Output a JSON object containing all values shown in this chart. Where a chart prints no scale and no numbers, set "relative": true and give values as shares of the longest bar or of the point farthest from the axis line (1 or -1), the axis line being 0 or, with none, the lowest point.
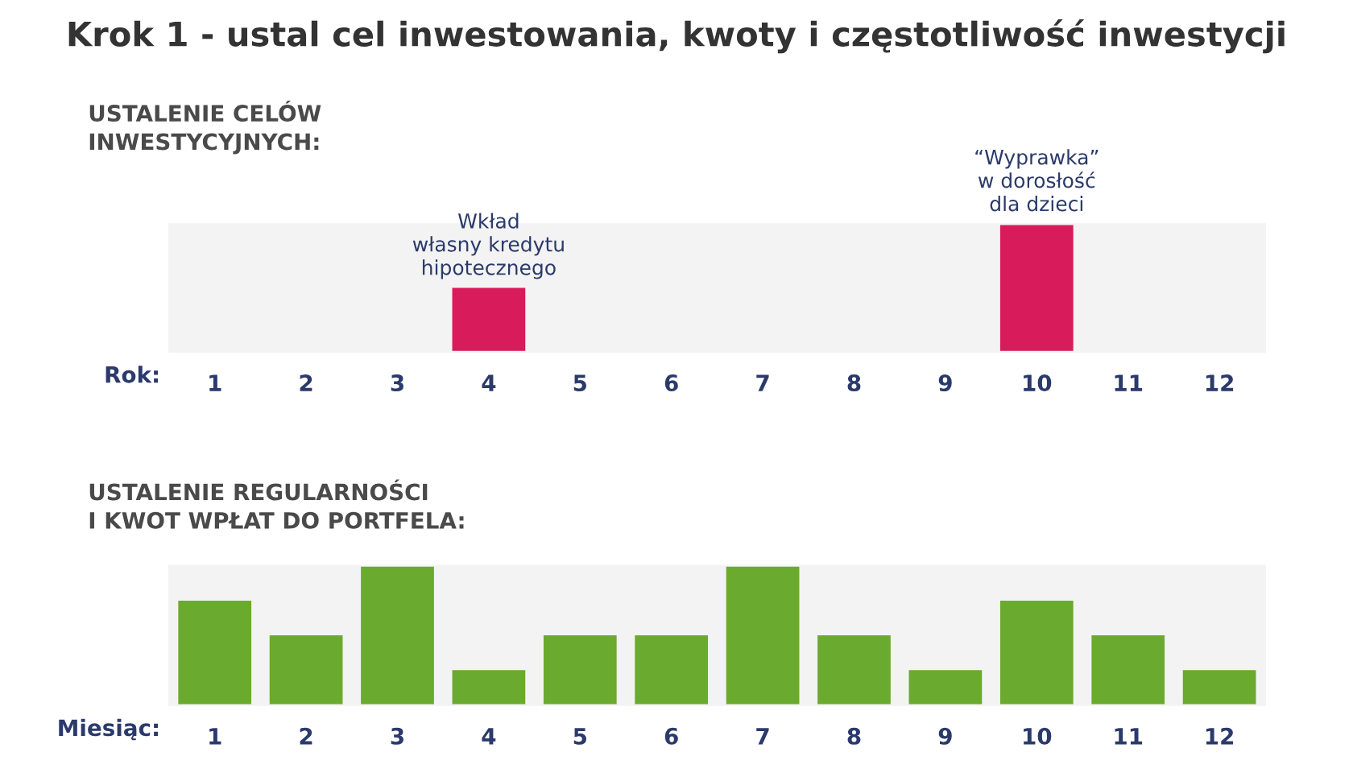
{
  "chart_data": [
    {
      "type": "bar",
      "title": "Krok 1 - ustal cel inwestowania, kwoty i częstotliwość inwestycji",
      "subtitle": "USTALENIE CELÓW\nINWESTYCYJNYCH:",
      "xlabel": "Rok:",
      "categories": [
        "1",
        "2",
        "3",
        "4",
        "5",
        "6",
        "7",
        "8",
        "9",
        "10",
        "11",
        "12"
      ],
      "values": [
        0,
        0,
        0,
        0.5,
        0,
        0,
        0,
        0,
        0,
        1,
        0,
        0
      ],
      "color": "#d81b5a",
      "relative": true,
      "tick_labels": "x",
      "annotations": [
        {
          "text": "Wkład\nwłasny kredytu\nhipotecznego",
          "x": "4",
          "y": 0.5
        },
        {
          "text": "“Wyprawka”\nw dorosłość\ndla dzieci",
          "x": "10",
          "y": 1
        }
      ]
    },
    {
      "type": "bar",
      "subtitle": "USTALENIE REGULARNOŚCI\nI KWOT WPŁAT DO PORTFELA:",
      "xlabel": "Miesiąc:",
      "categories": [
        "1",
        "2",
        "3",
        "4",
        "5",
        "6",
        "7",
        "8",
        "9",
        "10",
        "11",
        "12"
      ],
      "values": [
        0.75,
        0.5,
        1,
        0.25,
        0.5,
        0.5,
        1,
        0.5,
        0.25,
        0.75,
        0.5,
        0.25
      ],
      "color": "#6aaa2e",
      "relative": true,
      "tick_labels": "x"
    }
  ]
}
